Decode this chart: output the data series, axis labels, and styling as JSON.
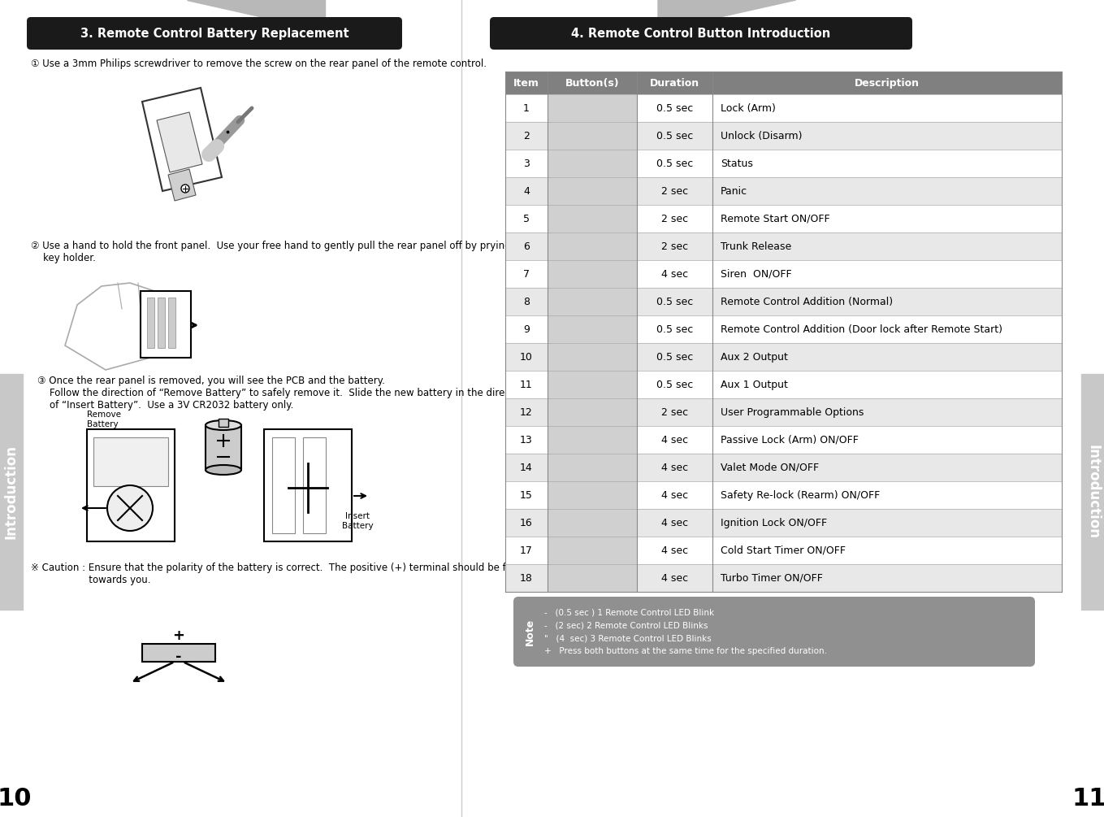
{
  "page_bg": "#ffffff",
  "sidebar_color": "#c8c8c8",
  "page_num_left": "10",
  "page_num_right": "11",
  "sidebar_text": "Introduction",
  "left_title": "3. Remote Control Battery Replacement",
  "left_title_bg": "#1a1a1a",
  "left_title_color": "#ffffff",
  "right_title": "4. Remote Control Button Introduction",
  "right_title_bg": "#1a1a1a",
  "right_title_color": "#ffffff",
  "step1_text": "① Use a 3mm Philips screwdriver to remove the screw on the rear panel of the remote control.",
  "step2_text": "② Use a hand to hold the front panel.  Use your free hand to gently pull the rear panel off by prying the\n    key holder.",
  "step3_text": "③ Once the rear panel is removed, you will see the PCB and the battery.\n    Follow the direction of “Remove Battery” to safely remove it.  Slide the new battery in the direction\n    of “Insert Battery”.  Use a 3V CR2032 battery only.",
  "caution_text": "※ Caution : Ensure that the polarity of the battery is correct.  The positive (+) terminal should be facing\n                   towards you.",
  "table_header_bg": "#808080",
  "table_header_color": "#ffffff",
  "table_row_odd_bg": "#ffffff",
  "table_row_even_bg": "#e8e8e8",
  "table_button_col_bg": "#d0d0d0",
  "table_headers": [
    "Item",
    "Button(s)",
    "Duration",
    "Description"
  ],
  "table_rows": [
    {
      "item": "1",
      "duration": "0.5 sec",
      "description": "Lock (Arm)"
    },
    {
      "item": "2",
      "duration": "0.5 sec",
      "description": "Unlock (Disarm)"
    },
    {
      "item": "3",
      "duration": "0.5 sec",
      "description": "Status"
    },
    {
      "item": "4",
      "duration": "2 sec",
      "description": "Panic"
    },
    {
      "item": "5",
      "duration": "2 sec",
      "description": "Remote Start ON/OFF"
    },
    {
      "item": "6",
      "duration": "2 sec",
      "description": "Trunk Release"
    },
    {
      "item": "7",
      "duration": "4 sec",
      "description": "Siren  ON/OFF"
    },
    {
      "item": "8",
      "duration": "0.5 sec",
      "description": "Remote Control Addition (Normal)"
    },
    {
      "item": "9",
      "duration": "0.5 sec",
      "description": "Remote Control Addition (Door lock after Remote Start)"
    },
    {
      "item": "10",
      "duration": "0.5 sec",
      "description": "Aux 2 Output"
    },
    {
      "item": "11",
      "duration": "0.5 sec",
      "description": "Aux 1 Output"
    },
    {
      "item": "12",
      "duration": "2 sec",
      "description": "User Programmable Options"
    },
    {
      "item": "13",
      "duration": "4 sec",
      "description": "Passive Lock (Arm) ON/OFF"
    },
    {
      "item": "14",
      "duration": "4 sec",
      "description": "Valet Mode ON/OFF"
    },
    {
      "item": "15",
      "duration": "4 sec",
      "description": "Safety Re-lock (Rearm) ON/OFF"
    },
    {
      "item": "16",
      "duration": "4 sec",
      "description": "Ignition Lock ON/OFF"
    },
    {
      "item": "17",
      "duration": "4 sec",
      "description": "Cold Start Timer ON/OFF"
    },
    {
      "item": "18",
      "duration": "4 sec",
      "description": "Turbo Timer ON/OFF"
    }
  ],
  "note_bg": "#909090",
  "note_color": "#ffffff",
  "note_lines": [
    "-   (0.5 sec ) 1 Remote Control LED Blink",
    "-   (2 sec) 2 Remote Control LED Blinks",
    "\"   (4  sec) 3 Remote Control LED Blinks",
    "+   Press both buttons at the same time for the specified duration."
  ]
}
